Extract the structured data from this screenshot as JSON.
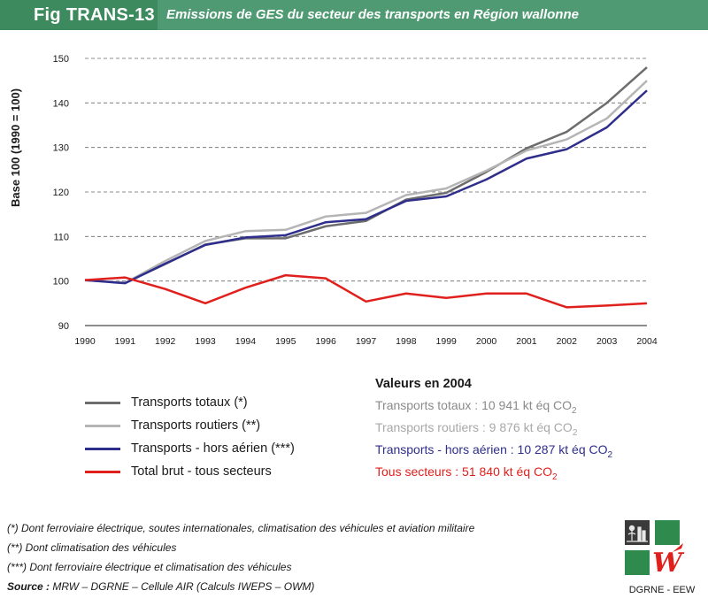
{
  "header": {
    "fig_tag": "Fig TRANS-13",
    "title": "Emissions de GES du secteur des transports en Région wallonne"
  },
  "colors": {
    "header_dark": "#3d8a5e",
    "header_light": "#4f9a72",
    "totaux": "#6d6d6d",
    "routiers": "#b5b5b5",
    "hors_aerien": "#2e2e8c",
    "total_brut": "#e0201c"
  },
  "chart_data": {
    "type": "line",
    "ylabel": "Base 100 (1990 = 100)",
    "xlabel": "",
    "ylim": [
      90,
      150
    ],
    "yticks": [
      90,
      100,
      110,
      120,
      130,
      140,
      150
    ],
    "grid": "horizontal-dashed",
    "categories": [
      "1990",
      "1991",
      "1992",
      "1993",
      "1994",
      "1995",
      "1996",
      "1997",
      "1998",
      "1999",
      "2000",
      "2001",
      "2002",
      "2003",
      "2004"
    ],
    "series": [
      {
        "name": "Transports totaux (*)",
        "color": "#6d6d6d",
        "values": [
          100.2,
          99.6,
          103.8,
          108.2,
          109.6,
          109.6,
          112.3,
          113.5,
          118.3,
          119.8,
          124.5,
          129.8,
          133.5,
          140.0,
          148.0
        ]
      },
      {
        "name": "Transports routiers (**)",
        "color": "#b5b5b5",
        "values": [
          100.2,
          99.6,
          104.5,
          109.0,
          111.2,
          111.5,
          114.5,
          115.3,
          119.3,
          120.8,
          124.8,
          129.3,
          131.8,
          136.5,
          145.0
        ]
      },
      {
        "name": "Transports - hors aérien (***)",
        "color": "#2e2e8c",
        "values": [
          100.2,
          99.5,
          103.9,
          108.1,
          109.8,
          110.3,
          113.2,
          113.9,
          118.0,
          119.0,
          122.8,
          127.5,
          129.6,
          134.5,
          142.8
        ]
      },
      {
        "name": "Total brut - tous secteurs",
        "color": "#e0201c",
        "values": [
          100.2,
          100.8,
          98.2,
          95.0,
          98.5,
          101.3,
          100.6,
          95.4,
          97.2,
          96.2,
          97.2,
          97.2,
          94.1,
          94.5,
          95.0
        ]
      }
    ]
  },
  "legend": [
    {
      "label": "Transports totaux (*)",
      "color": "#6d6d6d"
    },
    {
      "label": "Transports routiers (**)",
      "color": "#b5b5b5"
    },
    {
      "label": "Transports - hors aérien (***)",
      "color": "#2e2e8c"
    },
    {
      "label": "Total brut - tous secteurs",
      "color": "#e0201c"
    }
  ],
  "values_2004": {
    "title": "Valeurs en 2004",
    "rows": [
      {
        "label": "Transports totaux : ",
        "value": "10 941 kt éq CO",
        "sub": "2",
        "color": "#8a8a8a"
      },
      {
        "label": "Transports routiers : ",
        "value": "9 876 kt éq CO",
        "sub": "2",
        "color": "#a8a8a8"
      },
      {
        "label": "Transports - hors aérien : ",
        "value": "10 287 kt éq CO",
        "sub": "2",
        "color": "#2e2e8c"
      },
      {
        "label": "Tous secteurs : ",
        "value": "51 840 kt éq CO",
        "sub": "2",
        "color": "#e0201c"
      }
    ]
  },
  "notes": {
    "n1": "(*) Dont ferroviaire électrique, soutes internationales, climatisation des véhicules et aviation militaire",
    "n2": "(**) Dont climatisation des véhicules",
    "n3": "(***) Dont ferroviaire électrique et climatisation des véhicules",
    "source_label": "Source :",
    "source_text": " MRW – DGRNE – Cellule AIR (Calculs IWEPS – OWM)"
  },
  "logo": {
    "caption": "DGRNE - EEW",
    "icon": "dgrne-logo-icon",
    "letter": "W"
  }
}
